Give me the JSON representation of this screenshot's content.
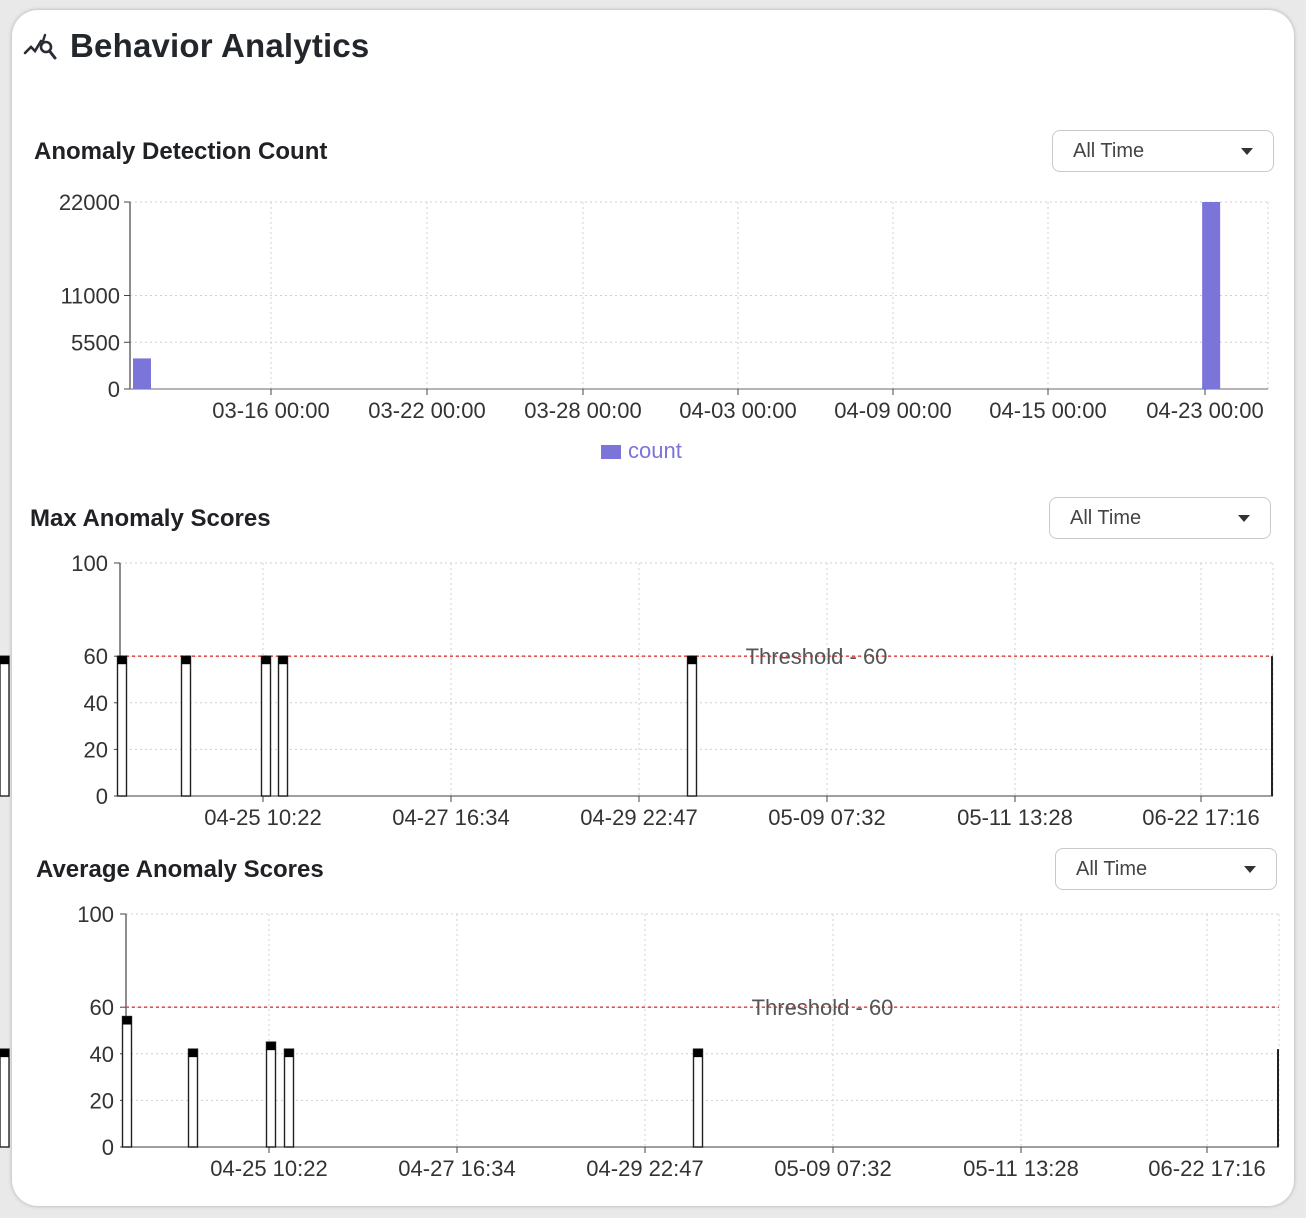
{
  "header": {
    "title": "Behavior Analytics",
    "icon": "analytics-icon"
  },
  "colors": {
    "bar": "#7b74d9",
    "threshold": "#e05555",
    "grid": "#cfcfcf",
    "score_bar": "#000000"
  },
  "sections": {
    "count": {
      "title": "Anomaly Detection Count",
      "filter_value": "All Time"
    },
    "max": {
      "title": "Max Anomaly Scores",
      "filter_value": "All Time"
    },
    "avg": {
      "title": "Average Anomaly Scores",
      "filter_value": "All Time"
    }
  },
  "chart_data": [
    {
      "id": "anomaly-detection-count",
      "type": "bar",
      "title": "Anomaly Detection Count",
      "x_ticks": [
        "03-16 00:00",
        "03-22 00:00",
        "03-28 00:00",
        "04-03 00:00",
        "04-09 00:00",
        "04-15 00:00",
        "04-23 00:00"
      ],
      "y_ticks": [
        0,
        5500,
        11000,
        22000
      ],
      "ylim": [
        0,
        22000
      ],
      "series": [
        {
          "name": "count",
          "points": [
            {
              "x": "03-10 00:00",
              "y": 3600
            },
            {
              "x": "04-23 06:00",
              "y": 22000
            }
          ]
        }
      ],
      "legend": "bottom-center",
      "grid": true
    },
    {
      "id": "max-anomaly-scores",
      "type": "bar",
      "title": "Max Anomaly Scores",
      "x_ticks": [
        "04-25 10:22",
        "04-27 16:34",
        "04-29 22:47",
        "05-09 07:32",
        "05-11 13:28",
        "06-22 17:16"
      ],
      "y_ticks": [
        0,
        20,
        40,
        60,
        100
      ],
      "ylim": [
        0,
        100
      ],
      "threshold": {
        "value": 60,
        "label": "Threshold - 60"
      },
      "values": [
        60,
        60,
        60,
        60,
        60,
        60
      ],
      "grid": true
    },
    {
      "id": "average-anomaly-scores",
      "type": "bar",
      "title": "Average Anomaly Scores",
      "x_ticks": [
        "04-25 10:22",
        "04-27 16:34",
        "04-29 22:47",
        "05-09 07:32",
        "05-11 13:28",
        "06-22 17:16"
      ],
      "y_ticks": [
        0,
        20,
        40,
        60,
        100
      ],
      "ylim": [
        0,
        100
      ],
      "threshold": {
        "value": 60,
        "label": "Threshold - 60"
      },
      "values": [
        56,
        42,
        45,
        42,
        42,
        42
      ],
      "grid": true
    }
  ]
}
